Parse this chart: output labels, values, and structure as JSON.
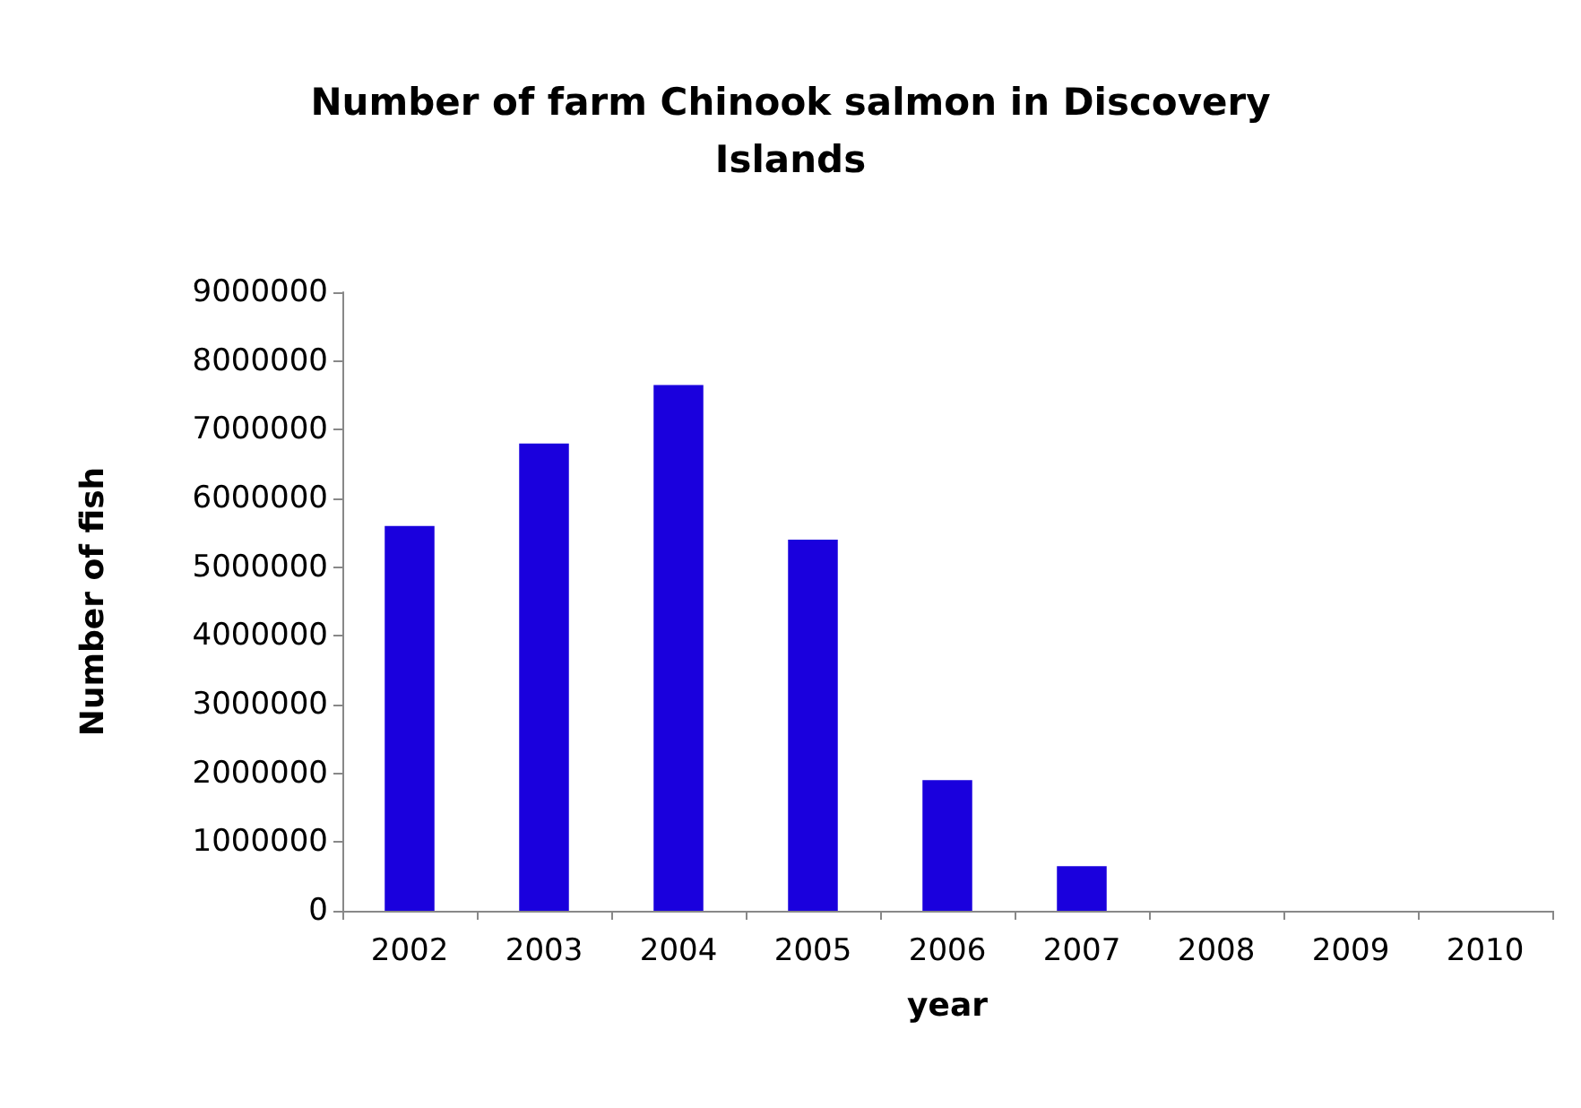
{
  "chart_data": {
    "type": "bar",
    "title": "Number of farm Chinook salmon in Discovery\nIslands",
    "xlabel": "year",
    "ylabel": "Number of fish",
    "categories": [
      "2002",
      "2003",
      "2004",
      "2005",
      "2006",
      "2007",
      "2008",
      "2009",
      "2010"
    ],
    "values": [
      5600000,
      6800000,
      7650000,
      5400000,
      1900000,
      650000,
      0,
      0,
      0
    ],
    "color": "#1a00dd",
    "ylim": [
      0,
      9000000
    ],
    "yticks": [
      0,
      1000000,
      2000000,
      3000000,
      4000000,
      5000000,
      6000000,
      7000000,
      8000000,
      9000000
    ],
    "grid": false
  }
}
